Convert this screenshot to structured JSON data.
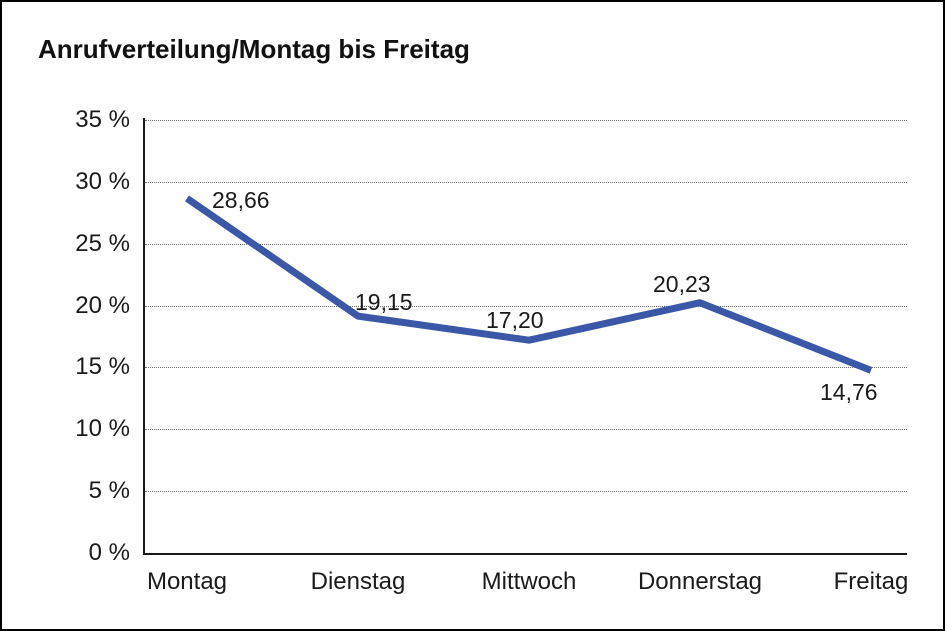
{
  "title": "Anrufverteilung/Montag bis Freitag",
  "colors": {
    "line": "#3A57A8",
    "text": "#1a1a1a",
    "grid": "#6e6e6e",
    "axis": "#1a1a1a",
    "background": "#ffffff",
    "frame_border": "#000000"
  },
  "chart_data": {
    "type": "line",
    "title": "Anrufverteilung/Montag bis Freitag",
    "categories": [
      "Montag",
      "Dienstag",
      "Mittwoch",
      "Donnerstag",
      "Freitag"
    ],
    "values": [
      28.66,
      19.15,
      17.2,
      20.23,
      14.76
    ],
    "point_labels": [
      "28,66",
      "19,15",
      "17,20",
      "20,23",
      "14,76"
    ],
    "series_name": "Anrufverteilung",
    "xlabel": "",
    "ylabel": "",
    "ylim": [
      0,
      35
    ],
    "ytick_step": 5,
    "ytick_labels": [
      "0 %",
      "5 %",
      "10 %",
      "15 %",
      "20 %",
      "25 %",
      "30 %",
      "35 %"
    ],
    "grid": "horizontal-dotted",
    "legend": "none",
    "line_width": 7
  }
}
